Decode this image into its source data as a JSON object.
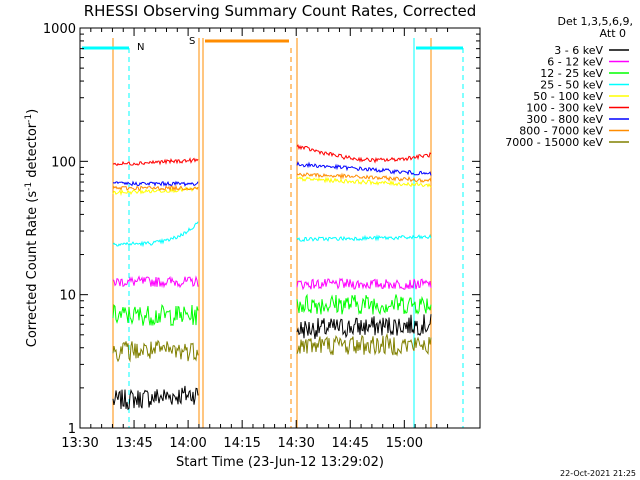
{
  "chart_data": {
    "type": "line",
    "title": "RHESSI Observing Summary Count Rates, Corrected",
    "xlabel": "Start Time (23-Jun-12 13:29:02)",
    "ylabel_main": "Corrected Count Rate (s",
    "ylabel_sup1": "-1",
    "ylabel_mid": " detector",
    "ylabel_sup2": "-1",
    "ylabel_end": ")",
    "yscale": "log",
    "ylim": [
      1,
      1000
    ],
    "xlim_minutes": [
      13.5,
      15.35
    ],
    "x_ticks": [
      {
        "v": 13.5,
        "label": "13:30"
      },
      {
        "v": 13.75,
        "label": "13:45"
      },
      {
        "v": 14.0,
        "label": "14:00"
      },
      {
        "v": 14.25,
        "label": "14:15"
      },
      {
        "v": 14.5,
        "label": "14:30"
      },
      {
        "v": 14.75,
        "label": "14:45"
      },
      {
        "v": 15.0,
        "label": "15:00"
      }
    ],
    "y_ticks": [
      {
        "v": 1,
        "label": "1"
      },
      {
        "v": 10,
        "label": "10"
      },
      {
        "v": 100,
        "label": "100"
      },
      {
        "v": 1000,
        "label": "1000"
      }
    ],
    "legend_header": [
      "Det 1,3,5,6,9,",
      "Att 0"
    ],
    "timestamp": "22-Oct-2021 21:25",
    "series": [
      {
        "name": "3 - 6 keV",
        "color": "#000000",
        "seg1": [
          1.6,
          1.8
        ],
        "seg2": [
          5.5,
          6.0
        ]
      },
      {
        "name": "6 - 12 keV",
        "color": "#ff00ff",
        "seg1": [
          12.5,
          12.5
        ],
        "seg2": [
          12.0,
          12.0
        ]
      },
      {
        "name": "12 - 25 keV",
        "color": "#00ff00",
        "seg1": [
          7.0,
          7.0
        ],
        "seg2": [
          8.5,
          8.5
        ]
      },
      {
        "name": "25 - 50 keV",
        "color": "#00ffff",
        "seg1": [
          24.0,
          35.0
        ],
        "seg2": [
          26.0,
          27.0
        ]
      },
      {
        "name": "50 - 100 keV",
        "color": "#ffff00",
        "seg1": [
          58.0,
          62.0
        ],
        "seg2": [
          74.0,
          66.0
        ]
      },
      {
        "name": "100 - 300 keV",
        "color": "#ff0000",
        "seg1": [
          95.0,
          102.0
        ],
        "seg2": [
          130.0,
          112.0
        ]
      },
      {
        "name": "300 - 800 keV",
        "color": "#0000ff",
        "seg1": [
          68.0,
          68.0
        ],
        "seg2": [
          95.0,
          80.0
        ]
      },
      {
        "name": "800 - 7000 keV",
        "color": "#ff8c00",
        "seg1": [
          63.0,
          63.0
        ],
        "seg2": [
          80.0,
          72.0
        ]
      },
      {
        "name": "7000 - 15000 keV",
        "color": "#808000",
        "seg1": [
          3.8,
          3.8
        ],
        "seg2": [
          4.2,
          4.2
        ]
      }
    ],
    "flags": [
      {
        "label": "N",
        "color": "#00ffff"
      },
      {
        "label": "S",
        "color": "#ff8c00"
      }
    ]
  }
}
